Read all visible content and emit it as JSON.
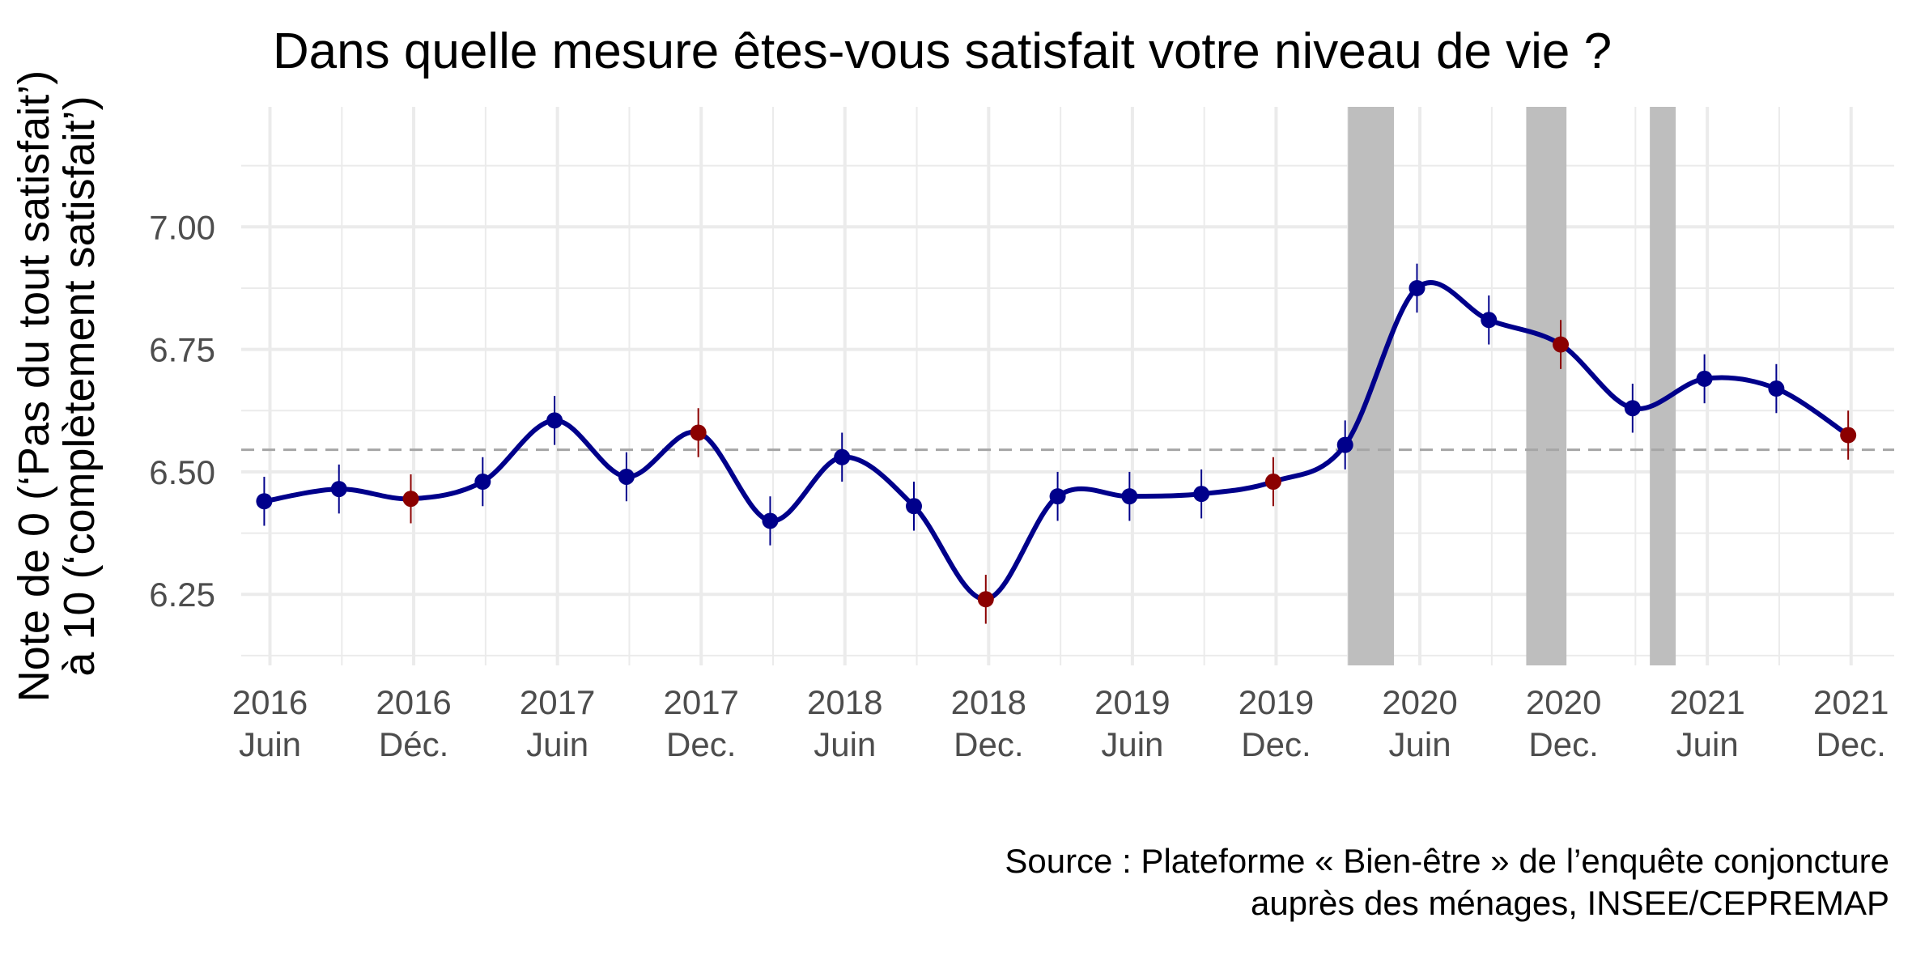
{
  "chart_data": {
    "type": "line",
    "title": "Dans quelle mesure êtes-vous satisfait votre niveau de vie ?",
    "ylabel_lines": [
      "Note de 0 (‘Pas du tout satisfait’)",
      "à 10 (‘complètement satisfait’)"
    ],
    "caption_lines": [
      "Source : Plateforme « Bien-être » de l’enquête conjoncture",
      "auprès des ménages, INSEE/CEPREMAP"
    ],
    "xlim": [
      2016.4,
      2022.15
    ],
    "ylim": [
      6.105,
      7.245
    ],
    "x_ticks": [
      {
        "x": 2016.5,
        "year": "2016",
        "period": "Juin"
      },
      {
        "x": 2017.0,
        "year": "2016",
        "period": "Déc."
      },
      {
        "x": 2017.5,
        "year": "2017",
        "period": "Juin"
      },
      {
        "x": 2018.0,
        "year": "2017",
        "period": "Dec."
      },
      {
        "x": 2018.5,
        "year": "2018",
        "period": "Juin"
      },
      {
        "x": 2019.0,
        "year": "2018",
        "period": "Dec."
      },
      {
        "x": 2019.5,
        "year": "2019",
        "period": "Juin"
      },
      {
        "x": 2020.0,
        "year": "2019",
        "period": "Dec."
      },
      {
        "x": 2020.5,
        "year": "2020",
        "period": "Juin"
      },
      {
        "x": 2021.0,
        "year": "2020",
        "period": "Dec."
      },
      {
        "x": 2021.5,
        "year": "2021",
        "period": "Juin"
      },
      {
        "x": 2022.0,
        "year": "2021",
        "period": "Dec."
      }
    ],
    "y_ticks": [
      6.25,
      6.5,
      6.75,
      7.0
    ],
    "y_tick_labels": [
      "6.25",
      "6.50",
      "6.75",
      "7.00"
    ],
    "grid": true,
    "reference_line": {
      "y": 6.545,
      "style": "dashed",
      "color": "#a6a6a6"
    },
    "shaded_periods": [
      {
        "start": 2020.25,
        "end": 2020.41
      },
      {
        "start": 2020.87,
        "end": 2021.01
      },
      {
        "start": 2021.3,
        "end": 2021.39
      }
    ],
    "series": [
      {
        "line_color": "#00008B",
        "points": [
          {
            "x": 2016.48,
            "y": 6.44,
            "ci": [
              6.39,
              6.49
            ],
            "color": "#00008B"
          },
          {
            "x": 2016.74,
            "y": 6.465,
            "ci": [
              6.415,
              6.515
            ],
            "color": "#00008B"
          },
          {
            "x": 2016.99,
            "y": 6.445,
            "ci": [
              6.395,
              6.495
            ],
            "color": "#8B0000"
          },
          {
            "x": 2017.24,
            "y": 6.48,
            "ci": [
              6.43,
              6.53
            ],
            "color": "#00008B"
          },
          {
            "x": 2017.49,
            "y": 6.605,
            "ci": [
              6.555,
              6.655
            ],
            "color": "#00008B"
          },
          {
            "x": 2017.74,
            "y": 6.49,
            "ci": [
              6.44,
              6.54
            ],
            "color": "#00008B"
          },
          {
            "x": 2017.99,
            "y": 6.58,
            "ci": [
              6.53,
              6.63
            ],
            "color": "#8B0000"
          },
          {
            "x": 2018.24,
            "y": 6.4,
            "ci": [
              6.35,
              6.45
            ],
            "color": "#00008B"
          },
          {
            "x": 2018.49,
            "y": 6.53,
            "ci": [
              6.48,
              6.58
            ],
            "color": "#00008B"
          },
          {
            "x": 2018.74,
            "y": 6.43,
            "ci": [
              6.38,
              6.48
            ],
            "color": "#00008B"
          },
          {
            "x": 2018.99,
            "y": 6.24,
            "ci": [
              6.19,
              6.29
            ],
            "color": "#8B0000"
          },
          {
            "x": 2019.24,
            "y": 6.45,
            "ci": [
              6.4,
              6.5
            ],
            "color": "#00008B"
          },
          {
            "x": 2019.49,
            "y": 6.45,
            "ci": [
              6.4,
              6.5
            ],
            "color": "#00008B"
          },
          {
            "x": 2019.74,
            "y": 6.455,
            "ci": [
              6.405,
              6.505
            ],
            "color": "#00008B"
          },
          {
            "x": 2019.99,
            "y": 6.48,
            "ci": [
              6.43,
              6.53
            ],
            "color": "#8B0000"
          },
          {
            "x": 2020.24,
            "y": 6.555,
            "ci": [
              6.505,
              6.605
            ],
            "color": "#00008B"
          },
          {
            "x": 2020.49,
            "y": 6.875,
            "ci": [
              6.825,
              6.925
            ],
            "color": "#00008B"
          },
          {
            "x": 2020.74,
            "y": 6.81,
            "ci": [
              6.76,
              6.86
            ],
            "color": "#00008B"
          },
          {
            "x": 2020.99,
            "y": 6.76,
            "ci": [
              6.71,
              6.81
            ],
            "color": "#8B0000"
          },
          {
            "x": 2021.24,
            "y": 6.63,
            "ci": [
              6.58,
              6.68
            ],
            "color": "#00008B"
          },
          {
            "x": 2021.49,
            "y": 6.69,
            "ci": [
              6.64,
              6.74
            ],
            "color": "#00008B"
          },
          {
            "x": 2021.74,
            "y": 6.67,
            "ci": [
              6.62,
              6.72
            ],
            "color": "#00008B"
          },
          {
            "x": 2021.99,
            "y": 6.575,
            "ci": [
              6.525,
              6.625
            ],
            "color": "#8B0000"
          }
        ]
      }
    ]
  }
}
